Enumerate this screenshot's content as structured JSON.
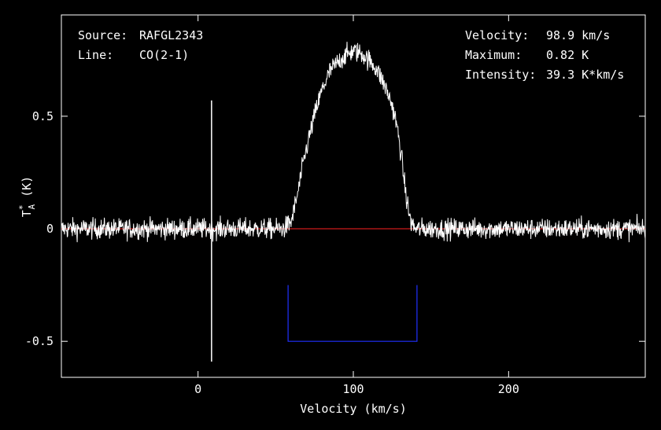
{
  "chart_data": {
    "type": "line",
    "xlabel": "Velocity (km/s)",
    "ylabel_main": "T",
    "ylabel_sub": "A",
    "ylabel_sup": "*",
    "ylabel_unit": " (K)",
    "xlim": [
      -88,
      288
    ],
    "ylim": [
      -0.66,
      0.95
    ],
    "xticks": [
      {
        "value": 0,
        "label": "0"
      },
      {
        "value": 100,
        "label": "100"
      },
      {
        "value": 200,
        "label": "200"
      }
    ],
    "yticks": [
      {
        "value": 0.5,
        "label": "0.5"
      },
      {
        "value": 0,
        "label": "0"
      },
      {
        "value": -0.5,
        "label": "-0.5"
      }
    ],
    "info": {
      "source_label": "Source:",
      "source_value": "RAFGL2343",
      "line_label": "Line:",
      "line_value": "CO(2-1)",
      "velocity_label": "Velocity:",
      "velocity_value": "98.9 km/s",
      "maximum_label": "Maximum:",
      "maximum_value": "0.82 K",
      "intensity_label": "Intensity:",
      "intensity_value": "39.3 K*km/s"
    },
    "baseline": {
      "y": 0,
      "color": "#ff2020"
    },
    "integration_window": {
      "x_start": 58,
      "x_end": 141,
      "y_bottom": -0.5,
      "y_top": -0.25,
      "color": "#2030ff"
    },
    "spike": {
      "x": 8.7,
      "y_max": 0.57,
      "y_min": -0.59
    },
    "spectrum": {
      "noise_rms": 0.032,
      "series": [
        {
          "x": -88,
          "y": 0
        },
        {
          "x": 55,
          "y": 0
        },
        {
          "x": 60,
          "y": 0.03
        },
        {
          "x": 64,
          "y": 0.15
        },
        {
          "x": 68,
          "y": 0.3
        },
        {
          "x": 72,
          "y": 0.42
        },
        {
          "x": 76,
          "y": 0.53
        },
        {
          "x": 80,
          "y": 0.62
        },
        {
          "x": 85,
          "y": 0.7
        },
        {
          "x": 90,
          "y": 0.74
        },
        {
          "x": 95,
          "y": 0.77
        },
        {
          "x": 100,
          "y": 0.79
        },
        {
          "x": 105,
          "y": 0.78
        },
        {
          "x": 110,
          "y": 0.75
        },
        {
          "x": 115,
          "y": 0.71
        },
        {
          "x": 120,
          "y": 0.64
        },
        {
          "x": 125,
          "y": 0.55
        },
        {
          "x": 128,
          "y": 0.46
        },
        {
          "x": 131,
          "y": 0.32
        },
        {
          "x": 134,
          "y": 0.14
        },
        {
          "x": 137,
          "y": 0.03
        },
        {
          "x": 140,
          "y": 0
        },
        {
          "x": 288,
          "y": 0
        }
      ]
    },
    "colors": {
      "background": "#000000",
      "spectrum": "#ffffff",
      "frame": "#ffffff"
    }
  }
}
